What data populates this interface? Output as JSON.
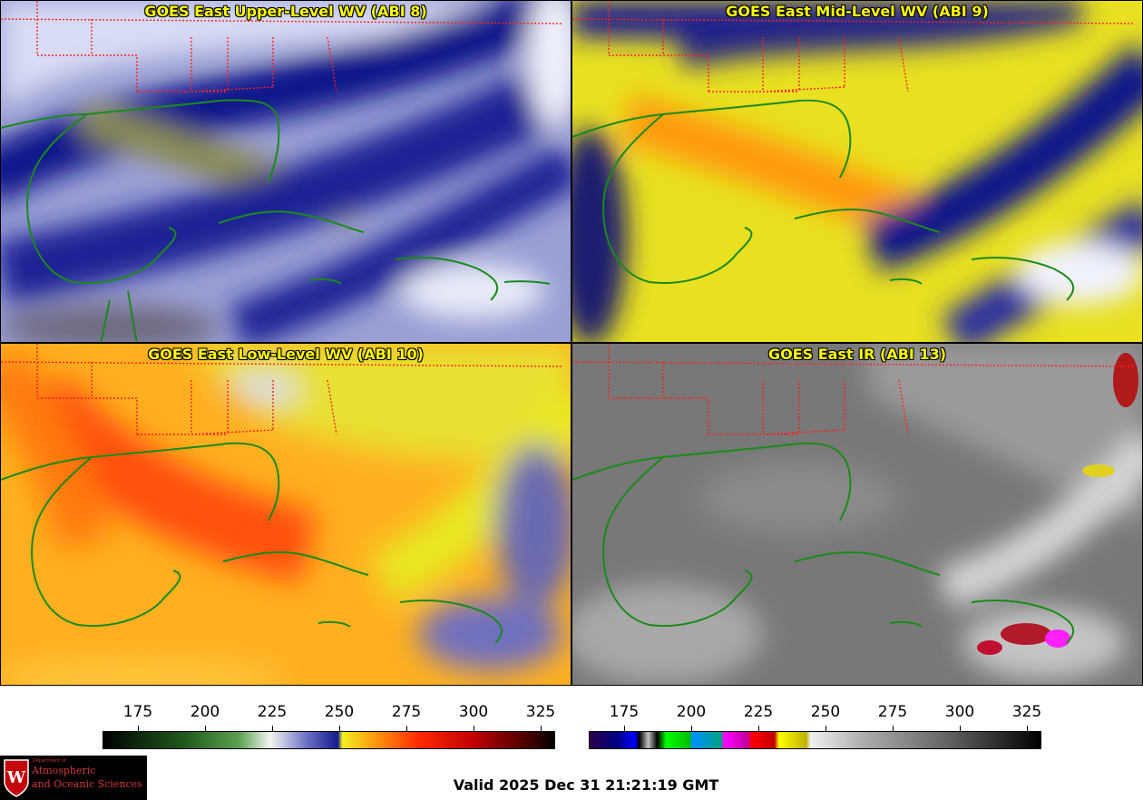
{
  "panels": [
    {
      "title": "GOES East Upper-Level WV (ABI 8)",
      "scheme": "wv"
    },
    {
      "title": "GOES East Mid-Level WV (ABI 9)",
      "scheme": "wv"
    },
    {
      "title": "GOES East Low-Level WV (ABI 10)",
      "scheme": "wv"
    },
    {
      "title": "GOES East IR (ABI 13)",
      "scheme": "ir"
    }
  ],
  "colorbars": [
    {
      "name": "water-vapor",
      "ticks": [
        "175",
        "200",
        "225",
        "250",
        "275",
        "300",
        "325"
      ]
    },
    {
      "name": "infrared",
      "ticks": [
        "175",
        "200",
        "225",
        "250",
        "275",
        "300",
        "325"
      ]
    }
  ],
  "logo": {
    "line1": "Department of",
    "line2": "Atmospheric",
    "line3": "and Oceanic Sciences",
    "crest_letter": "W"
  },
  "footer": {
    "valid_time": "Valid 2025 Dec 31 21:21:19 GMT"
  },
  "colors": {
    "title": "#ffff00",
    "coast": "#1a8a1a",
    "states": "#ff2020"
  }
}
